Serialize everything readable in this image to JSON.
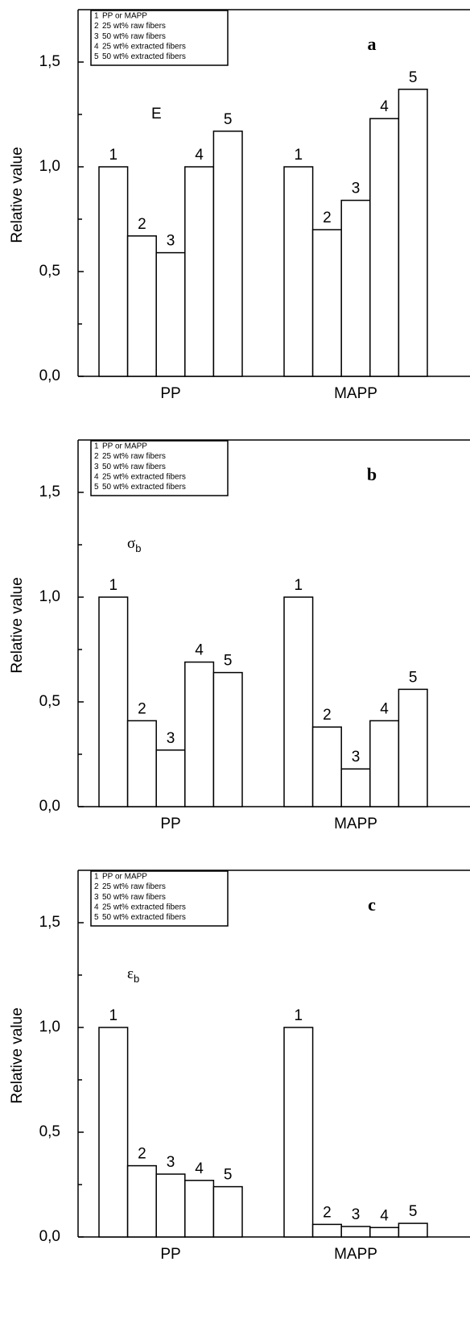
{
  "chart_data": [
    {
      "type": "bar",
      "panel": "a",
      "annotation": {
        "text": "E"
      },
      "ylabel": "Relative value",
      "categories": [
        "PP",
        "MAPP"
      ],
      "series": [
        {
          "label": "1",
          "name": "PP or MAPP",
          "color": "#ffffff",
          "values": [
            1.0,
            1.0
          ]
        },
        {
          "label": "2",
          "name": "25 wt% raw fibers",
          "color": "#ffffff",
          "values": [
            0.67,
            0.7
          ]
        },
        {
          "label": "3",
          "name": "50 wt% raw fibers",
          "color": "#ffffff",
          "values": [
            0.59,
            0.84
          ]
        },
        {
          "label": "4",
          "name": "25 wt% extracted fibers",
          "color": "#ffffff",
          "values": [
            1.0,
            1.23
          ]
        },
        {
          "label": "5",
          "name": "50 wt% extracted fibers",
          "color": "#ffffff",
          "values": [
            1.17,
            1.37
          ]
        }
      ],
      "ylim": [
        0,
        1.75
      ],
      "yticks": [
        {
          "value": 0,
          "label": "0,0"
        },
        {
          "value": 0.5,
          "label": "0,5"
        },
        {
          "value": 1,
          "label": "1,0"
        },
        {
          "value": 1.5,
          "label": "1,5"
        }
      ],
      "minor_yticks": [
        0.25,
        0.75,
        1.25
      ],
      "legend": "upper left"
    },
    {
      "type": "bar",
      "panel": "b",
      "annotation": {
        "text": "σ",
        "subscript": "b"
      },
      "ylabel": "Relative value",
      "categories": [
        "PP",
        "MAPP"
      ],
      "series": [
        {
          "label": "1",
          "name": "PP or MAPP",
          "color": "#ffffff",
          "values": [
            1.0,
            1.0
          ]
        },
        {
          "label": "2",
          "name": "25 wt% raw fibers",
          "color": "#ffffff",
          "values": [
            0.41,
            0.38
          ]
        },
        {
          "label": "3",
          "name": "50 wt% raw fibers",
          "color": "#ffffff",
          "values": [
            0.27,
            0.18
          ]
        },
        {
          "label": "4",
          "name": "25 wt% extracted fibers",
          "color": "#ffffff",
          "values": [
            0.69,
            0.41
          ]
        },
        {
          "label": "5",
          "name": "50 wt% extracted fibers",
          "color": "#ffffff",
          "values": [
            0.64,
            0.56
          ]
        }
      ],
      "ylim": [
        0,
        1.75
      ],
      "yticks": [
        {
          "value": 0,
          "label": "0,0"
        },
        {
          "value": 0.5,
          "label": "0,5"
        },
        {
          "value": 1,
          "label": "1,0"
        },
        {
          "value": 1.5,
          "label": "1,5"
        }
      ],
      "minor_yticks": [
        0.25,
        0.75,
        1.25
      ],
      "legend": "upper left"
    },
    {
      "type": "bar",
      "panel": "c",
      "annotation": {
        "text": "ε",
        "subscript": "b"
      },
      "ylabel": "Relative value",
      "categories": [
        "PP",
        "MAPP"
      ],
      "series": [
        {
          "label": "1",
          "name": "PP or MAPP",
          "color": "#ffffff",
          "values": [
            1.0,
            1.0
          ]
        },
        {
          "label": "2",
          "name": "25 wt% raw fibers",
          "color": "#ffffff",
          "values": [
            0.34,
            0.06
          ]
        },
        {
          "label": "3",
          "name": "50 wt% raw fibers",
          "color": "#ffffff",
          "values": [
            0.3,
            0.05
          ]
        },
        {
          "label": "4",
          "name": "25 wt% extracted fibers",
          "color": "#ffffff",
          "values": [
            0.27,
            0.045
          ]
        },
        {
          "label": "5",
          "name": "50 wt% extracted fibers",
          "color": "#ffffff",
          "values": [
            0.24,
            0.065
          ]
        }
      ],
      "ylim": [
        0,
        1.75
      ],
      "yticks": [
        {
          "value": 0,
          "label": "0,0"
        },
        {
          "value": 0.5,
          "label": "0,5"
        },
        {
          "value": 1,
          "label": "1,0"
        },
        {
          "value": 1.5,
          "label": "1,5"
        }
      ],
      "minor_yticks": [
        0.25,
        0.75,
        1.25
      ],
      "legend": "upper left"
    }
  ]
}
